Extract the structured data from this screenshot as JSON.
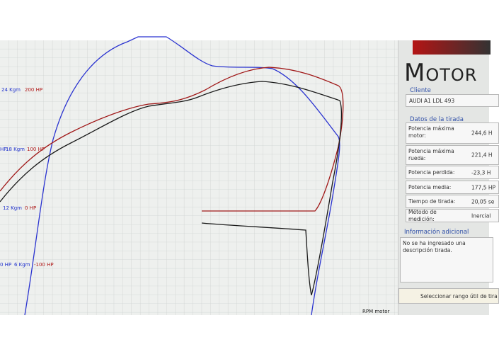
{
  "chart": {
    "axis_labels": [
      {
        "text": "24 Kgm",
        "color": "#2233cc"
      },
      {
        "text": "200 HP",
        "color": "#b01818"
      },
      {
        "text": "HP",
        "color": "#2233cc"
      },
      {
        "text": "18 Kgm",
        "color": "#2233cc"
      },
      {
        "text": "100 HP",
        "color": "#b01818"
      },
      {
        "text": "12 Kgm",
        "color": "#2233cc"
      },
      {
        "text": "0 HP",
        "color": "#b01818"
      },
      {
        "text": "0 HP",
        "color": "#2233cc"
      },
      {
        "text": "6 Kgm",
        "color": "#2233cc"
      },
      {
        "text": "-100 HP",
        "color": "#b01818"
      }
    ],
    "x_axis_label": "RPM motor"
  },
  "panel": {
    "logo": "Motor",
    "client_heading": "Cliente",
    "client": "AUDI A1 LDL 493",
    "data_heading": "Datos de la tirada",
    "rows": [
      [
        "Potencia máxima motor:",
        "244,6 H"
      ],
      [
        "Potencia máxima rueda:",
        "221,4 H"
      ],
      [
        "Potencia perdida:",
        "-23,3 H"
      ],
      [
        "Potencia media:",
        "177,5 HP"
      ],
      [
        "Tiempo de tirada:",
        "20,05 se"
      ],
      [
        "Método de medición:",
        "Inercial"
      ]
    ],
    "info_heading": "Información adicional",
    "info_text": "No se ha ingresado una descripción tirada.",
    "button": "Seleccionar rango útil de tira"
  }
}
